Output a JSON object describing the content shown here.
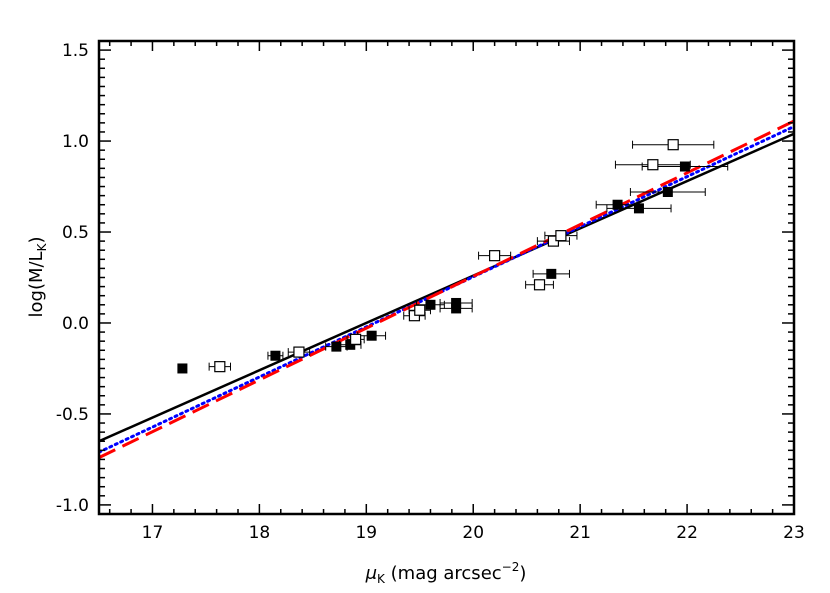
{
  "chart_data": {
    "type": "scatter",
    "xlabel": "μK (mag arcsec−2)",
    "xlabel_parts": {
      "symbol": "μ",
      "sub": "K",
      "text": " (mag arcsec",
      "sup": "−2",
      "close": ")"
    },
    "ylabel": "log(M/LK)",
    "ylabel_parts": {
      "text": "log(M/L",
      "sub": "K",
      "close": ")"
    },
    "xlim": [
      16.5,
      23
    ],
    "ylim": [
      -1.05,
      1.55
    ],
    "x_ticks": [
      {
        "value": 17,
        "label": "17"
      },
      {
        "value": 18,
        "label": "18"
      },
      {
        "value": 19,
        "label": "19"
      },
      {
        "value": 20,
        "label": "20"
      },
      {
        "value": 21,
        "label": "21"
      },
      {
        "value": 22,
        "label": "22"
      },
      {
        "value": 23,
        "label": "23"
      }
    ],
    "y_ticks": [
      {
        "value": -1.0,
        "label": "-1.0"
      },
      {
        "value": -0.5,
        "label": "-0.5"
      },
      {
        "value": 0.0,
        "label": "0.0"
      },
      {
        "value": 0.5,
        "label": "0.5"
      },
      {
        "value": 1.0,
        "label": "1.0"
      },
      {
        "value": 1.5,
        "label": "1.5"
      }
    ],
    "grid": false,
    "series": [
      {
        "marker": "filled-square",
        "color": "#000000",
        "points": [
          {
            "x": 17.28,
            "y": -0.25,
            "xerr": 0.0
          },
          {
            "x": 18.15,
            "y": -0.18,
            "xerr": 0.07
          },
          {
            "x": 18.72,
            "y": -0.13,
            "xerr": 0.1
          },
          {
            "x": 18.85,
            "y": -0.12,
            "xerr": 0.1
          },
          {
            "x": 19.05,
            "y": -0.07,
            "xerr": 0.13
          },
          {
            "x": 19.6,
            "y": 0.1,
            "xerr": 0.13
          },
          {
            "x": 19.84,
            "y": 0.11,
            "xerr": 0.15
          },
          {
            "x": 19.84,
            "y": 0.08,
            "xerr": 0.15
          },
          {
            "x": 20.73,
            "y": 0.27,
            "xerr": 0.17
          },
          {
            "x": 21.35,
            "y": 0.65,
            "xerr": 0.2
          },
          {
            "x": 21.55,
            "y": 0.63,
            "xerr": 0.3
          },
          {
            "x": 21.82,
            "y": 0.72,
            "xerr": 0.35
          },
          {
            "x": 21.98,
            "y": 0.86,
            "xerr": 0.4
          }
        ]
      },
      {
        "marker": "open-square",
        "color": "#000000",
        "points": [
          {
            "x": 17.63,
            "y": -0.24,
            "xerr": 0.1
          },
          {
            "x": 18.37,
            "y": -0.16,
            "xerr": 0.1
          },
          {
            "x": 18.9,
            "y": -0.09,
            "xerr": 0.08
          },
          {
            "x": 19.45,
            "y": 0.04,
            "xerr": 0.1
          },
          {
            "x": 19.5,
            "y": 0.07,
            "xerr": 0.1
          },
          {
            "x": 20.2,
            "y": 0.37,
            "xerr": 0.15
          },
          {
            "x": 20.62,
            "y": 0.21,
            "xerr": 0.13
          },
          {
            "x": 20.75,
            "y": 0.45,
            "xerr": 0.15
          },
          {
            "x": 20.82,
            "y": 0.48,
            "xerr": 0.15
          },
          {
            "x": 21.68,
            "y": 0.87,
            "xerr": 0.35
          },
          {
            "x": 21.87,
            "y": 0.98,
            "xerr": 0.38
          }
        ]
      }
    ],
    "fit_lines": [
      {
        "style": "solid",
        "color": "#000000",
        "x": [
          16.5,
          23
        ],
        "y": [
          -0.65,
          1.04
        ]
      },
      {
        "style": "dotted",
        "color": "#0000ff",
        "x": [
          16.5,
          23
        ],
        "y": [
          -0.71,
          1.08
        ]
      },
      {
        "style": "dashed",
        "color": "#ff0000",
        "x": [
          16.5,
          23
        ],
        "y": [
          -0.74,
          1.11
        ]
      }
    ]
  }
}
